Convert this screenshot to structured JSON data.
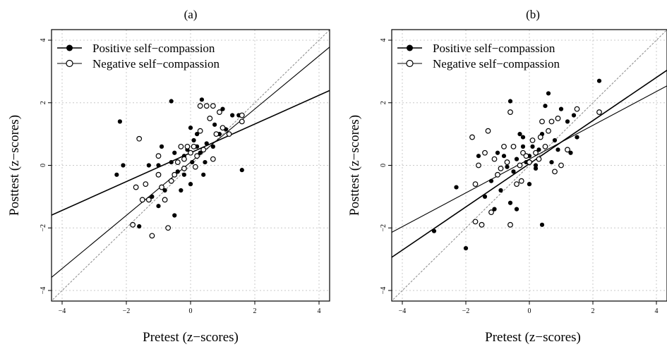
{
  "chart_data": [
    {
      "type": "scatter",
      "title": "(a)",
      "xlabel": "Pretest (z−scores)",
      "ylabel": "Posttest (z−scores)",
      "xlim": [
        -4,
        4
      ],
      "ylim": [
        -4,
        4
      ],
      "xticks": [
        "−4",
        "−2",
        "0",
        "2",
        "4"
      ],
      "yticks": [
        "−4",
        "−2",
        "0",
        "2",
        "4"
      ],
      "grid": true,
      "legend_position": "top-left",
      "series": [
        {
          "name": "Positive self−compassion",
          "marker": "filled",
          "points": [
            [
              -2.2,
              1.4
            ],
            [
              -2.3,
              -0.3
            ],
            [
              -2.1,
              0.0
            ],
            [
              -1.3,
              0.0
            ],
            [
              -1.0,
              0.0
            ],
            [
              -0.9,
              0.6
            ],
            [
              -0.6,
              2.05
            ],
            [
              -0.5,
              0.4
            ],
            [
              -0.4,
              -0.2
            ],
            [
              -0.3,
              0.6
            ],
            [
              -0.2,
              -0.3
            ],
            [
              -0.1,
              0.5
            ],
            [
              0.0,
              1.2
            ],
            [
              0.1,
              0.8
            ],
            [
              0.2,
              1.0
            ],
            [
              0.3,
              0.4
            ],
            [
              0.35,
              2.1
            ],
            [
              0.5,
              0.7
            ],
            [
              0.6,
              1.5
            ],
            [
              0.75,
              1.3
            ],
            [
              0.9,
              1.0
            ],
            [
              1.0,
              1.8
            ],
            [
              1.3,
              1.6
            ],
            [
              1.5,
              1.6
            ],
            [
              1.6,
              -0.15
            ],
            [
              -0.8,
              -0.8
            ],
            [
              -0.5,
              -1.6
            ],
            [
              0.0,
              -0.6
            ],
            [
              0.4,
              -0.3
            ],
            [
              -1.2,
              -1.0
            ],
            [
              -1.6,
              -1.95
            ],
            [
              -0.3,
              -0.8
            ],
            [
              0.05,
              0.1
            ],
            [
              0.2,
              0.6
            ],
            [
              0.7,
              0.6
            ],
            [
              -0.2,
              0.3
            ],
            [
              0.45,
              0.1
            ],
            [
              -0.6,
              0.1
            ],
            [
              1.1,
              1.15
            ],
            [
              -1.0,
              -1.3
            ]
          ],
          "fit_line": {
            "intercept": 0.4,
            "slope": 0.46
          }
        },
        {
          "name": "Negative self−compassion",
          "marker": "open",
          "points": [
            [
              -1.6,
              0.85
            ],
            [
              -1.7,
              -0.7
            ],
            [
              -1.5,
              -1.1
            ],
            [
              -1.4,
              -0.6
            ],
            [
              -1.3,
              -1.1
            ],
            [
              -1.2,
              -2.25
            ],
            [
              -1.8,
              -1.9
            ],
            [
              -1.0,
              -0.3
            ],
            [
              -0.8,
              -1.1
            ],
            [
              -0.7,
              -2.0
            ],
            [
              -0.6,
              -0.5
            ],
            [
              -0.5,
              -0.3
            ],
            [
              -0.4,
              0.1
            ],
            [
              -0.3,
              0.6
            ],
            [
              -0.2,
              0.2
            ],
            [
              -0.1,
              0.6
            ],
            [
              0.0,
              0.4
            ],
            [
              0.1,
              0.6
            ],
            [
              0.2,
              0.3
            ],
            [
              0.3,
              1.1
            ],
            [
              0.4,
              0.5
            ],
            [
              0.5,
              1.9
            ],
            [
              0.6,
              1.5
            ],
            [
              0.7,
              1.9
            ],
            [
              0.8,
              1.0
            ],
            [
              0.9,
              1.7
            ],
            [
              1.0,
              1.2
            ],
            [
              1.2,
              1.0
            ],
            [
              1.6,
              1.6
            ],
            [
              1.6,
              1.4
            ],
            [
              0.7,
              0.2
            ],
            [
              -0.9,
              -0.7
            ],
            [
              -0.2,
              -0.1
            ],
            [
              0.3,
              1.9
            ],
            [
              -1.0,
              0.3
            ],
            [
              0.15,
              -0.05
            ]
          ],
          "fit_line": {
            "intercept": 0.1,
            "slope": 0.85
          }
        }
      ],
      "reference_line": {
        "intercept": 0,
        "slope": 1,
        "style": "dashed"
      }
    },
    {
      "type": "scatter",
      "title": "(b)",
      "xlabel": "Pretest (z−scores)",
      "ylabel": "Posttest (z−scores)",
      "xlim": [
        -4,
        4
      ],
      "ylim": [
        -4,
        4
      ],
      "xticks": [
        "−4",
        "−2",
        "0",
        "2",
        "4"
      ],
      "yticks": [
        "−4",
        "−2",
        "0",
        "2",
        "4"
      ],
      "grid": true,
      "legend_position": "top-left",
      "series": [
        {
          "name": "Positive self−compassion",
          "marker": "filled",
          "points": [
            [
              -3.0,
              -2.1
            ],
            [
              -2.3,
              -0.7
            ],
            [
              -2.0,
              -2.65
            ],
            [
              -1.6,
              0.3
            ],
            [
              -1.4,
              -1.0
            ],
            [
              -1.2,
              -0.5
            ],
            [
              -1.0,
              0.4
            ],
            [
              -0.9,
              -0.8
            ],
            [
              -0.8,
              0.3
            ],
            [
              -0.6,
              -1.2
            ],
            [
              -0.5,
              -0.2
            ],
            [
              -0.4,
              0.2
            ],
            [
              -0.3,
              1.0
            ],
            [
              -0.2,
              0.6
            ],
            [
              -0.1,
              0.1
            ],
            [
              0.0,
              0.3
            ],
            [
              0.1,
              0.6
            ],
            [
              0.2,
              -0.1
            ],
            [
              0.3,
              0.5
            ],
            [
              0.4,
              1.0
            ],
            [
              0.5,
              1.9
            ],
            [
              0.6,
              2.3
            ],
            [
              0.7,
              0.1
            ],
            [
              0.8,
              0.8
            ],
            [
              1.0,
              1.8
            ],
            [
              1.2,
              1.4
            ],
            [
              1.4,
              1.6
            ],
            [
              1.5,
              0.9
            ],
            [
              2.2,
              2.7
            ],
            [
              0.4,
              -1.9
            ],
            [
              -0.6,
              2.05
            ],
            [
              -0.7,
              -0.05
            ],
            [
              0.0,
              -0.6
            ],
            [
              0.3,
              0.2
            ],
            [
              -0.2,
              0.9
            ],
            [
              -1.1,
              -1.4
            ],
            [
              -0.4,
              -1.4
            ],
            [
              0.9,
              0.5
            ],
            [
              1.3,
              0.4
            ],
            [
              0.2,
              0.0
            ]
          ],
          "fit_line": {
            "intercept": 0.05,
            "slope": 0.69
          }
        },
        {
          "name": "Negative self−compassion",
          "marker": "open",
          "points": [
            [
              -1.8,
              0.9
            ],
            [
              -1.7,
              -0.6
            ],
            [
              -1.6,
              0.0
            ],
            [
              -1.4,
              0.4
            ],
            [
              -1.3,
              1.1
            ],
            [
              -1.2,
              -1.5
            ],
            [
              -1.1,
              0.2
            ],
            [
              -1.0,
              -0.3
            ],
            [
              -0.9,
              -0.1
            ],
            [
              -0.8,
              0.6
            ],
            [
              -0.7,
              0.1
            ],
            [
              -0.6,
              1.7
            ],
            [
              -0.5,
              0.6
            ],
            [
              -0.4,
              -0.6
            ],
            [
              -0.3,
              0.0
            ],
            [
              -0.2,
              0.4
            ],
            [
              -0.1,
              0.3
            ],
            [
              0.0,
              0.1
            ],
            [
              0.1,
              0.8
            ],
            [
              0.2,
              0.4
            ],
            [
              0.3,
              0.2
            ],
            [
              0.4,
              1.4
            ],
            [
              0.5,
              0.6
            ],
            [
              0.6,
              1.1
            ],
            [
              0.8,
              -0.2
            ],
            [
              0.9,
              1.5
            ],
            [
              1.0,
              0.0
            ],
            [
              1.2,
              0.5
            ],
            [
              1.5,
              1.8
            ],
            [
              2.2,
              1.7
            ],
            [
              -1.7,
              -1.8
            ],
            [
              -1.5,
              -1.9
            ],
            [
              -0.6,
              -1.9
            ],
            [
              0.35,
              0.9
            ],
            [
              -0.25,
              -0.5
            ],
            [
              0.7,
              1.4
            ]
          ],
          "fit_line": {
            "intercept": 0.2,
            "slope": 0.54
          }
        }
      ],
      "reference_line": {
        "intercept": 0,
        "slope": 1,
        "style": "dashed"
      }
    }
  ]
}
